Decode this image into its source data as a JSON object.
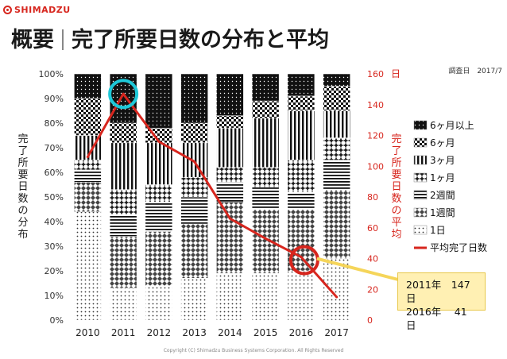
{
  "brand": {
    "name": "SHIMADZU"
  },
  "title": {
    "main": "概要",
    "sub": "完了所要日数の分布と平均"
  },
  "survey_date": "調査日　2017/7",
  "left_axis_title": "完了所要日数の分布",
  "right_axis_title": "完了所要日数の平均",
  "right_axis_unit": "日",
  "copyright": "Copyright (C) Shimadzu Business Systems Corporation. All Rights Reserved",
  "callout": {
    "line1": "2011年　147日",
    "line2": "2016年　 41日"
  },
  "colors": {
    "accent": "#d7261e",
    "highlight_circle": "#1ec8d8",
    "callout_bg": "#fff0b3"
  },
  "chart_data": {
    "type": "bar",
    "stacked": true,
    "categories": [
      "2010",
      "2011",
      "2012",
      "2013",
      "2014",
      "2015",
      "2016",
      "2017"
    ],
    "ylim": [
      0,
      100
    ],
    "y_ticks": [
      "0%",
      "10%",
      "20%",
      "30%",
      "40%",
      "50%",
      "60%",
      "70%",
      "80%",
      "90%",
      "100%"
    ],
    "y2lim": [
      0,
      160
    ],
    "y2_ticks": [
      "0",
      "20",
      "40",
      "60",
      "80",
      "100",
      "120",
      "140",
      "160"
    ],
    "series": [
      {
        "name": "1日",
        "pattern": "dots",
        "values": [
          44,
          13,
          14,
          17,
          19,
          19,
          20,
          25
        ]
      },
      {
        "name": "1週間",
        "pattern": "diamonds",
        "values": [
          12,
          21,
          22,
          22,
          29,
          26,
          25,
          28
        ]
      },
      {
        "name": "2週間",
        "pattern": "hlines",
        "values": [
          5,
          9,
          12,
          11,
          8,
          9,
          7,
          12
        ]
      },
      {
        "name": "1ヶ月",
        "pattern": "plus",
        "values": [
          4,
          10,
          7,
          8,
          6,
          8,
          13,
          9
        ]
      },
      {
        "name": "3ヶ月",
        "pattern": "vlines",
        "values": [
          10,
          19,
          17,
          14,
          16,
          20,
          20,
          11
        ]
      },
      {
        "name": "6ヶ月",
        "pattern": "checker",
        "values": [
          15,
          8,
          6,
          8,
          5,
          7,
          6,
          10
        ]
      },
      {
        "name": "6ヶ月以上",
        "pattern": "solid_dots",
        "values": [
          10,
          20,
          22,
          20,
          17,
          11,
          9,
          5
        ]
      }
    ],
    "line": {
      "name": "平均完了日数",
      "color": "#d7261e",
      "values": [
        106,
        147,
        116,
        103,
        66,
        53,
        41,
        15
      ]
    },
    "legend_position": "right"
  }
}
